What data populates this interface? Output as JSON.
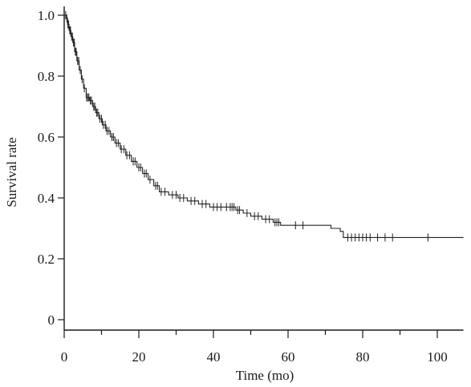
{
  "chart_data": {
    "type": "line",
    "subtype": "kaplan-meier-survival",
    "xlabel": "Time (mo)",
    "ylabel": "Survival rate",
    "xlim": [
      0,
      107
    ],
    "ylim": [
      0,
      1.0
    ],
    "x_ticks": [
      "0",
      "20",
      "40",
      "60",
      "80",
      "100"
    ],
    "y_ticks": [
      "0",
      "0.2",
      "0.4",
      "0.6",
      "0.8",
      "1.0"
    ],
    "grid": false,
    "series": [
      {
        "steps": [
          [
            0,
            1.0
          ],
          [
            0.5,
            0.99
          ],
          [
            0.9,
            0.97
          ],
          [
            1.3,
            0.95
          ],
          [
            1.8,
            0.93
          ],
          [
            2.3,
            0.91
          ],
          [
            2.8,
            0.88
          ],
          [
            3.4,
            0.85
          ],
          [
            4.0,
            0.82
          ],
          [
            4.6,
            0.79
          ],
          [
            5.2,
            0.76
          ],
          [
            5.9,
            0.73
          ],
          [
            6.8,
            0.72
          ],
          [
            7.6,
            0.7
          ],
          [
            8.4,
            0.68
          ],
          [
            9.3,
            0.66
          ],
          [
            10.2,
            0.64
          ],
          [
            11.2,
            0.62
          ],
          [
            12.4,
            0.6
          ],
          [
            13.6,
            0.58
          ],
          [
            15.0,
            0.56
          ],
          [
            16.5,
            0.54
          ],
          [
            18.0,
            0.52
          ],
          [
            19.5,
            0.5
          ],
          [
            21.0,
            0.48
          ],
          [
            22.5,
            0.46
          ],
          [
            24.0,
            0.44
          ],
          [
            25.5,
            0.42
          ],
          [
            28.0,
            0.41
          ],
          [
            30.5,
            0.4
          ],
          [
            33.0,
            0.39
          ],
          [
            36.0,
            0.38
          ],
          [
            39.0,
            0.37
          ],
          [
            46.0,
            0.36
          ],
          [
            48.0,
            0.35
          ],
          [
            50.0,
            0.34
          ],
          [
            53.0,
            0.33
          ],
          [
            56.0,
            0.32
          ],
          [
            58.0,
            0.31
          ],
          [
            71.5,
            0.3
          ],
          [
            74.0,
            0.29
          ],
          [
            74.8,
            0.27
          ],
          [
            107,
            0.27
          ]
        ],
        "censored_times": [
          0.4,
          0.7,
          1.0,
          1.2,
          1.5,
          1.7,
          2.0,
          2.2,
          2.5,
          2.7,
          3.0,
          3.2,
          3.6,
          3.9,
          4.3,
          4.8,
          5.4,
          6.0,
          6.3,
          6.6,
          7.0,
          7.3,
          7.9,
          8.2,
          8.7,
          9.0,
          9.6,
          10.0,
          10.5,
          11.0,
          11.5,
          12.0,
          12.8,
          13.2,
          14.0,
          14.5,
          15.3,
          16.0,
          16.8,
          17.5,
          18.5,
          19.0,
          20.0,
          20.5,
          21.5,
          22.0,
          23.0,
          24.5,
          25.0,
          26.0,
          27.0,
          29.0,
          30.0,
          31.0,
          32.0,
          34.0,
          35.0,
          37.0,
          38.0,
          40.0,
          41.0,
          42.0,
          43.5,
          44.5,
          45.0,
          45.5,
          46.5,
          47.0,
          49.0,
          51.0,
          52.0,
          54.0,
          55.0,
          56.5,
          57.0,
          57.5,
          62.0,
          64.0,
          76.0,
          77.0,
          78.0,
          79.0,
          80.0,
          81.0,
          82.0,
          84.0,
          86.0,
          88.0,
          97.5
        ]
      }
    ]
  }
}
